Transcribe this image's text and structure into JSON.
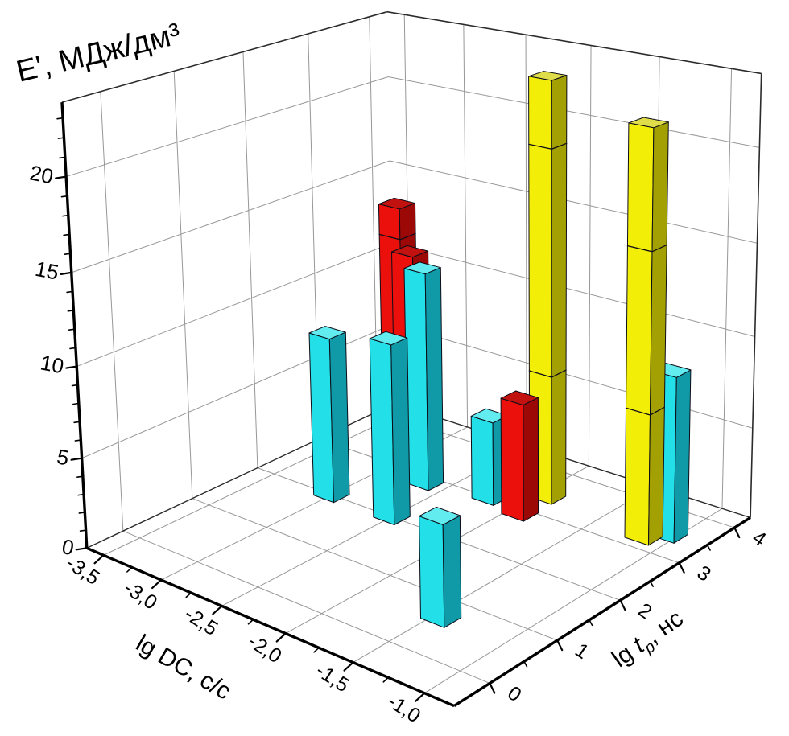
{
  "chart_data": {
    "type": "bar",
    "variant": "3d-columns-perspective",
    "title": "",
    "axes": {
      "z": {
        "title": "E', МДж/дм³",
        "ticks": [
          0,
          5,
          10,
          15,
          20
        ],
        "tick_labels": [
          "0",
          "5",
          "10",
          "15",
          "20"
        ],
        "range": [
          0,
          23.8
        ],
        "minor_step": 1
      },
      "x": {
        "title": "lg DC, с/с",
        "ticks": [
          -3.5,
          -3.0,
          -2.5,
          -2.0,
          -1.5,
          -1.0
        ],
        "tick_labels": [
          "-3,5",
          "-3,0",
          "-2,5",
          "-2,0",
          "-1,5",
          "-1,0"
        ],
        "range": [
          -3.65,
          -0.8
        ],
        "minor_step": 0.25
      },
      "y": {
        "title": "lg tp, нс",
        "title_parts": {
          "prefix": "lg ",
          "italic_var": "t",
          "subscript": "p",
          "suffix": ", нс"
        },
        "ticks": [
          0,
          1,
          2,
          3,
          4
        ],
        "tick_labels": [
          "0",
          "1",
          "2",
          "3",
          "4"
        ],
        "range": [
          -0.5,
          4.3
        ],
        "minor_step": 0.5
      }
    },
    "bars": [
      {
        "x": -3.0,
        "y": 2.0,
        "height": 9.3,
        "color": "cyan",
        "segments": []
      },
      {
        "x": -2.5,
        "y": 2.0,
        "height": 10.0,
        "color": "cyan",
        "segments": []
      },
      {
        "x": -2.85,
        "y": 2.85,
        "height": 15.6,
        "color": "red",
        "segments": [
          13.9
        ]
      },
      {
        "x": -2.75,
        "y": 2.85,
        "height": 13.1,
        "color": "red",
        "segments": []
      },
      {
        "x": -2.65,
        "y": 2.85,
        "height": 12.35,
        "color": "cyan",
        "segments": []
      },
      {
        "x": -2.2,
        "y": 3.0,
        "height": 4.7,
        "color": "cyan",
        "segments": []
      },
      {
        "x": -1.45,
        "y": 0.65,
        "height": 5.3,
        "color": "cyan",
        "segments": []
      },
      {
        "x": -1.92,
        "y": 2.9,
        "height": 6.5,
        "color": "red",
        "segments": []
      },
      {
        "x": -1.93,
        "y": 3.4,
        "height": 23.2,
        "color": "yellow",
        "segments": [
          7.2,
          19.6
        ]
      },
      {
        "x": -1.15,
        "y": 3.25,
        "height": 22.0,
        "color": "yellow",
        "segments": [
          7.1,
          15.7
        ]
      },
      {
        "x": -1.05,
        "y": 3.45,
        "height": 9.0,
        "color": "cyan",
        "segments": []
      }
    ],
    "legend": null,
    "grid": "on"
  },
  "colors": {
    "background": "#ffffff",
    "grid": "#979797",
    "axis": "#000000",
    "outline": "#0d0d18",
    "cyan": {
      "front": "#22dfe8",
      "side": "#109aa8",
      "top": "#63ecf0"
    },
    "red": {
      "front": "#ec100c",
      "side": "#9c0806",
      "top": "#c21210"
    },
    "yellow": {
      "front": "#f3ee08",
      "side": "#a3a004",
      "top": "#e0dd4a"
    }
  }
}
